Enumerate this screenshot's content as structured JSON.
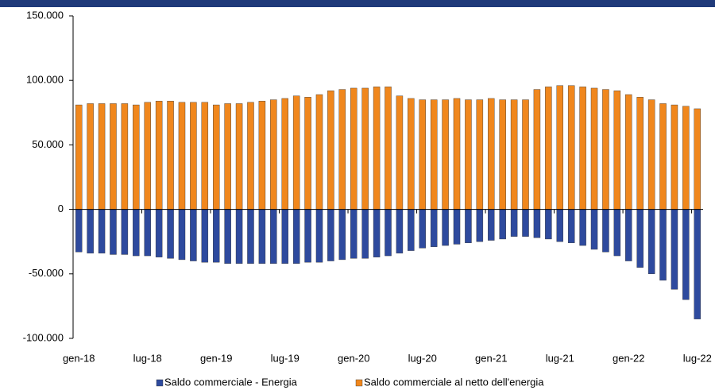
{
  "chart_data": {
    "type": "bar",
    "categories": [
      "gen-18",
      null,
      null,
      null,
      null,
      null,
      "lug-18",
      null,
      null,
      null,
      null,
      null,
      "gen-19",
      null,
      null,
      null,
      null,
      null,
      "lug-19",
      null,
      null,
      null,
      null,
      null,
      "gen-20",
      null,
      null,
      null,
      null,
      null,
      "lug-20",
      null,
      null,
      null,
      null,
      null,
      "gen-21",
      null,
      null,
      null,
      null,
      null,
      "lug-21",
      null,
      null,
      null,
      null,
      null,
      "gen-22",
      null,
      null,
      null,
      null,
      null,
      "lug-22"
    ],
    "series": [
      {
        "name": "Saldo commerciale - Energia",
        "color": "#2e4a9e",
        "values": [
          -33000,
          -34000,
          -34000,
          -35000,
          -35000,
          -36000,
          -36000,
          -37000,
          -38000,
          -39000,
          -40000,
          -41000,
          -41000,
          -42000,
          -42000,
          -42000,
          -42000,
          -42000,
          -42000,
          -42000,
          -41000,
          -41000,
          -40000,
          -39000,
          -38000,
          -38000,
          -37000,
          -36000,
          -34000,
          -32000,
          -30000,
          -29000,
          -28000,
          -27000,
          -26000,
          -25000,
          -24000,
          -23000,
          -21000,
          -21000,
          -22000,
          -23000,
          -25000,
          -26000,
          -28000,
          -31000,
          -33000,
          -36000,
          -40000,
          -45000,
          -50000,
          -55000,
          -62000,
          -70000,
          -85000
        ]
      },
      {
        "name": "Saldo commerciale al netto dell'energia",
        "color": "#f0871d",
        "values": [
          81000,
          82000,
          82000,
          82000,
          82000,
          81000,
          83000,
          84000,
          84000,
          83000,
          83000,
          83000,
          81000,
          82000,
          82000,
          83000,
          84000,
          85000,
          86000,
          88000,
          87000,
          89000,
          92000,
          93000,
          94000,
          94000,
          95000,
          95000,
          88000,
          86000,
          85000,
          85000,
          85000,
          86000,
          85000,
          85000,
          86000,
          85000,
          85000,
          85000,
          93000,
          95000,
          96000,
          96000,
          95000,
          94000,
          93000,
          92000,
          89000,
          87000,
          85000,
          82000,
          81000,
          80000,
          78000
        ]
      }
    ],
    "ylim": [
      -100000,
      150000
    ],
    "yticks": [
      {
        "value": -100000,
        "label": "-100.000"
      },
      {
        "value": -50000,
        "label": "-50.000"
      },
      0,
      {
        "value": 50000,
        "label": "50.000"
      },
      {
        "value": 100000,
        "label": "100.000"
      },
      {
        "value": 150000,
        "label": "150.000"
      }
    ],
    "grid": false,
    "legend": "bottom"
  }
}
